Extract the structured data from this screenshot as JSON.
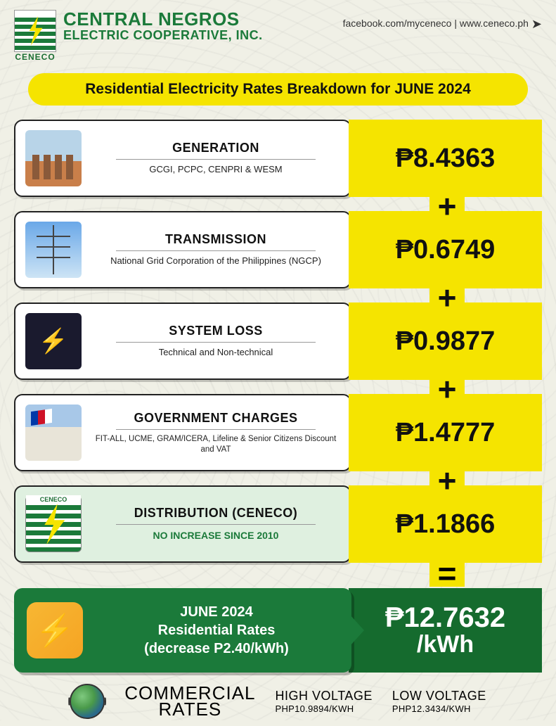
{
  "header": {
    "logo_caption": "CENECO",
    "title": "CENTRAL NEGROS",
    "subtitle": "ELECTRIC COOPERATIVE, INC.",
    "links": "facebook.com/myceneco | www.ceneco.ph"
  },
  "banner": "Residential Electricity Rates Breakdown for JUNE 2024",
  "items": [
    {
      "title": "GENERATION",
      "sub": "GCGI, PCPC, CENPRI & WESM",
      "amount": "₱8.4363"
    },
    {
      "title": "TRANSMISSION",
      "sub": "National Grid Corporation of the Philippines (NGCP)",
      "amount": "₱0.6749"
    },
    {
      "title": "SYSTEM LOSS",
      "sub": "Technical and Non-technical",
      "amount": "₱0.9877"
    },
    {
      "title": "GOVERNMENT CHARGES",
      "sub": "FIT-ALL, UCME, GRAM/ICERA, Lifeline & Senior Citizens Discount and VAT",
      "amount": "₱1.4777"
    },
    {
      "title": "DISTRIBUTION (CENECO)",
      "sub": "NO INCREASE SINCE 2010",
      "amount": "₱1.1866"
    }
  ],
  "total": {
    "line1": "JUNE 2024",
    "line2": "Residential Rates",
    "line3": "(decrease P2.40/kWh)",
    "value": "₱12.7632",
    "unit": "/kWh"
  },
  "footer": {
    "label_top": "COMMERCIAL",
    "label_bot": "RATES",
    "high_title": "HIGH VOLTAGE",
    "high_val": "PHP10.9894/KWH",
    "low_title": "LOW VOLTAGE",
    "low_val": "PHP12.3434/KWH"
  },
  "colors": {
    "yellow": "#f5e400",
    "green": "#1b7a3a",
    "dark_green": "#156b2e",
    "bg": "#f0f0e6"
  }
}
